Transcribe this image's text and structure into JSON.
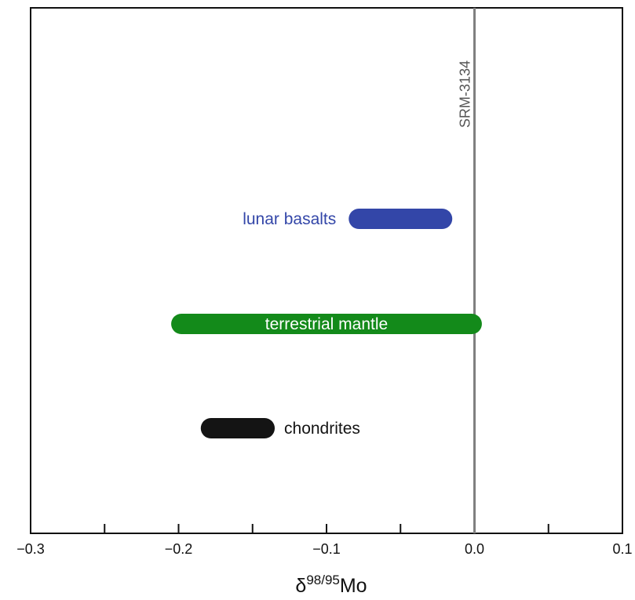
{
  "chart_data": {
    "type": "range",
    "xlabel_base": "δ",
    "xlabel_sup": "98/95",
    "xlabel_suffix": "Mo",
    "xlim": [
      -0.3,
      0.1
    ],
    "x_tick_values": [
      -0.3,
      -0.25,
      -0.2,
      -0.15,
      -0.1,
      -0.05,
      0.0,
      0.05,
      0.1
    ],
    "x_tick_labels": [
      "−0.3",
      "",
      "−0.2",
      "",
      "−0.1",
      "",
      "0.0",
      "",
      "0.1"
    ],
    "reference_line": {
      "x": 0.0,
      "label": "SRM-3134",
      "color": "#808080"
    },
    "ranges": [
      {
        "name": "lunar basalts",
        "min": -0.085,
        "max": -0.015,
        "color": "#3346a8",
        "label_color": "#3346a8",
        "label_position": "left"
      },
      {
        "name": "terrestrial mantle",
        "min": -0.205,
        "max": 0.005,
        "color": "#138a1a",
        "label_color": "#ffffff",
        "label_position": "inside"
      },
      {
        "name": "chondrites",
        "min": -0.185,
        "max": -0.135,
        "color": "#141414",
        "label_color": "#141414",
        "label_position": "right"
      }
    ],
    "grid": false,
    "legend": "none"
  }
}
